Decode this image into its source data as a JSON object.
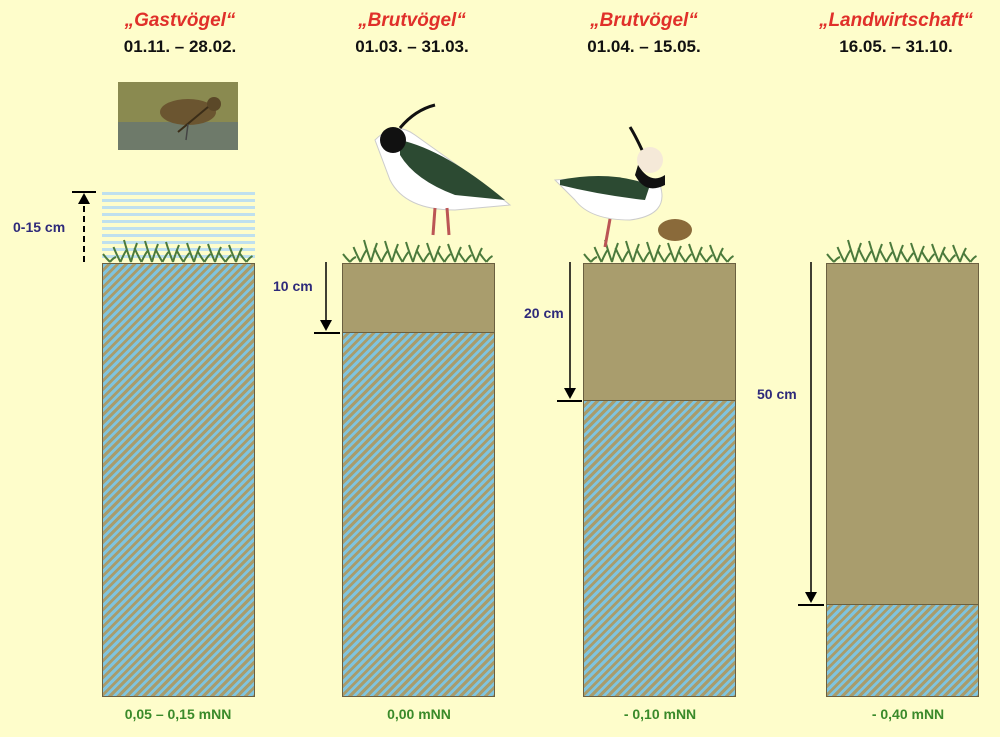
{
  "columns": [
    {
      "title": "„Gastvögel“",
      "dates": "01.11. – 28.02.",
      "depth_label": "0-15 cm",
      "water_level": "0,05 – 0,15 mNN",
      "soil_depth_cm": 0,
      "flooded": true,
      "image": "snipe-photo"
    },
    {
      "title": "„Brutvögel“",
      "dates": "01.03. – 31.03.",
      "depth_label": "10 cm",
      "water_level": "0,00 mNN",
      "soil_depth_cm": 10,
      "image": "lapwing-illustration"
    },
    {
      "title": "„Brutvögel“",
      "dates": "01.04. – 15.05.",
      "depth_label": "20 cm",
      "water_level": "- 0,10 mNN",
      "soil_depth_cm": 20,
      "image": "lapwing-with-chick-illustration"
    },
    {
      "title": "„Landwirtschaft“",
      "dates": "16.05. – 31.10.",
      "depth_label": "50 cm",
      "water_level": "- 0,40 mNN",
      "soil_depth_cm": 50
    }
  ],
  "colors": {
    "background": "#fefdcb",
    "title": "#e0302a",
    "soil": "#a99d6d",
    "water": "#7fc4df",
    "level_text": "#3a8a2a",
    "depth_text": "#2e2a7a"
  }
}
